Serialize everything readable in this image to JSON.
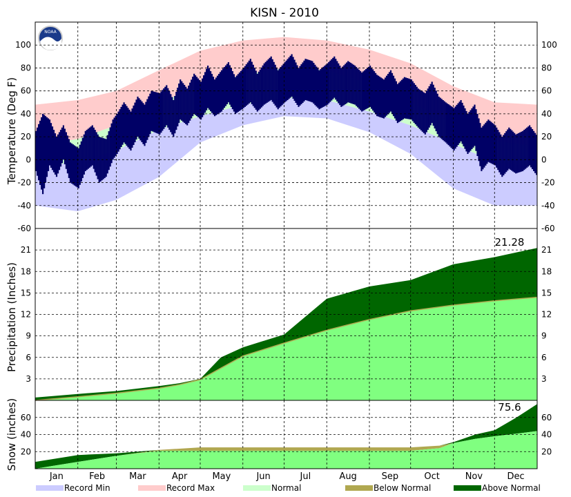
{
  "chart_data": {
    "type": "area",
    "title": "KISN - 2010",
    "colors": {
      "record_min": "#ccccff",
      "record_max": "#ffcccc",
      "normal": "#ccffcc",
      "observed": "#000066",
      "precip_normal": "#80ff80",
      "below_normal": "#b0a850",
      "above_normal": "#006600"
    },
    "months": [
      "Jan",
      "Feb",
      "Mar",
      "Apr",
      "May",
      "Jun",
      "Jul",
      "Aug",
      "Sep",
      "Oct",
      "Nov",
      "Dec"
    ],
    "legend": {
      "placement": "bottom",
      "items": [
        {
          "key": "record_min",
          "label": "Record Min"
        },
        {
          "key": "record_max",
          "label": "Record Max"
        },
        {
          "key": "normal",
          "label": "Normal"
        },
        {
          "key": "below_normal",
          "label": "Below Normal"
        },
        {
          "key": "above_normal",
          "label": "Above Normal"
        }
      ]
    },
    "panels": [
      {
        "id": "temperature",
        "ylabel": "Temperature (Deg F)",
        "ylim": [
          -60,
          120
        ],
        "ticks": [
          -60,
          -40,
          -20,
          0,
          20,
          40,
          60,
          80,
          100
        ],
        "grid": true,
        "series": {
          "record_max_day": [
            0,
            31,
            59,
            90,
            120,
            151,
            181,
            212,
            243,
            273,
            304,
            334,
            365
          ],
          "record_max": [
            48,
            52,
            60,
            78,
            95,
            104,
            107,
            104,
            96,
            84,
            64,
            50,
            48
          ],
          "record_min": [
            -40,
            -45,
            -35,
            -15,
            15,
            30,
            38,
            36,
            24,
            5,
            -25,
            -40,
            -40
          ],
          "normal_high_day": [
            0,
            31,
            59,
            90,
            120,
            151,
            181,
            212,
            243,
            273,
            304,
            334,
            365
          ],
          "normal_high": [
            12,
            18,
            30,
            50,
            64,
            74,
            80,
            78,
            66,
            50,
            32,
            16,
            12
          ],
          "normal_low": [
            -6,
            -2,
            8,
            26,
            38,
            48,
            54,
            52,
            42,
            30,
            14,
            -2,
            -6
          ],
          "observed_day": [
            0,
            5,
            10,
            15,
            20,
            25,
            31,
            36,
            41,
            46,
            51,
            56,
            59,
            64,
            69,
            74,
            79,
            84,
            90,
            95,
            100,
            105,
            110,
            115,
            120,
            125,
            130,
            135,
            140,
            145,
            151,
            156,
            161,
            166,
            171,
            176,
            181,
            186,
            191,
            196,
            201,
            206,
            212,
            217,
            222,
            227,
            232,
            237,
            243,
            248,
            253,
            258,
            263,
            268,
            273,
            278,
            283,
            288,
            293,
            298,
            304,
            309,
            314,
            319,
            324,
            329,
            334,
            339,
            344,
            349,
            354,
            359,
            365
          ],
          "observed_high": [
            25,
            40,
            35,
            20,
            30,
            15,
            10,
            25,
            30,
            20,
            18,
            35,
            40,
            50,
            42,
            55,
            48,
            60,
            58,
            65,
            52,
            70,
            62,
            75,
            68,
            82,
            70,
            78,
            85,
            72,
            80,
            88,
            75,
            84,
            90,
            78,
            85,
            92,
            80,
            88,
            86,
            78,
            84,
            90,
            80,
            86,
            82,
            76,
            82,
            74,
            70,
            78,
            66,
            72,
            70,
            62,
            58,
            68,
            55,
            50,
            45,
            52,
            40,
            48,
            28,
            35,
            30,
            20,
            28,
            22,
            25,
            30,
            20
          ],
          "observed_low": [
            -10,
            -30,
            -5,
            -15,
            0,
            -20,
            -25,
            -10,
            -5,
            -20,
            -15,
            0,
            5,
            15,
            8,
            20,
            12,
            25,
            22,
            30,
            20,
            35,
            30,
            40,
            35,
            45,
            38,
            42,
            50,
            40,
            45,
            50,
            42,
            48,
            52,
            44,
            50,
            55,
            46,
            52,
            50,
            44,
            48,
            54,
            46,
            50,
            48,
            42,
            46,
            38,
            36,
            42,
            32,
            36,
            35,
            28,
            22,
            32,
            20,
            15,
            8,
            16,
            5,
            12,
            -10,
            -2,
            -5,
            -15,
            -8,
            -12,
            -10,
            -5,
            -15
          ]
        }
      },
      {
        "id": "precipitation",
        "ylabel": "Precipitation (Inches)",
        "ylim": [
          0,
          24
        ],
        "ticks": [
          3,
          6,
          9,
          12,
          15,
          18,
          21
        ],
        "grid": true,
        "annotation": "21.28",
        "series": {
          "day": [
            0,
            31,
            59,
            90,
            105,
            120,
            135,
            151,
            181,
            212,
            243,
            273,
            304,
            334,
            365
          ],
          "normal": [
            0,
            0.5,
            1.0,
            1.7,
            2.2,
            2.9,
            4.5,
            6.2,
            8.0,
            9.8,
            11.3,
            12.5,
            13.3,
            13.9,
            14.4
          ],
          "observed": [
            0.4,
            0.9,
            1.3,
            2.0,
            2.4,
            3.0,
            6.0,
            7.4,
            9.2,
            14.2,
            15.9,
            16.8,
            19.0,
            20.0,
            21.28
          ]
        }
      },
      {
        "id": "snow",
        "ylabel": "Snow (inches)",
        "ylim": [
          0,
          80
        ],
        "ticks": [
          20,
          40,
          60
        ],
        "grid": true,
        "annotation": "75.6",
        "series": {
          "day": [
            0,
            31,
            59,
            90,
            120,
            151,
            181,
            212,
            243,
            273,
            294,
            304,
            320,
            334,
            350,
            365
          ],
          "normal": [
            0,
            8,
            15,
            22,
            25,
            25,
            25,
            25,
            25,
            25,
            27,
            30,
            35,
            38,
            41,
            44
          ],
          "observed": [
            8,
            16,
            18,
            21,
            21,
            21,
            21,
            21,
            21,
            21,
            24,
            31,
            40,
            45,
            60,
            75.6
          ]
        }
      }
    ]
  }
}
